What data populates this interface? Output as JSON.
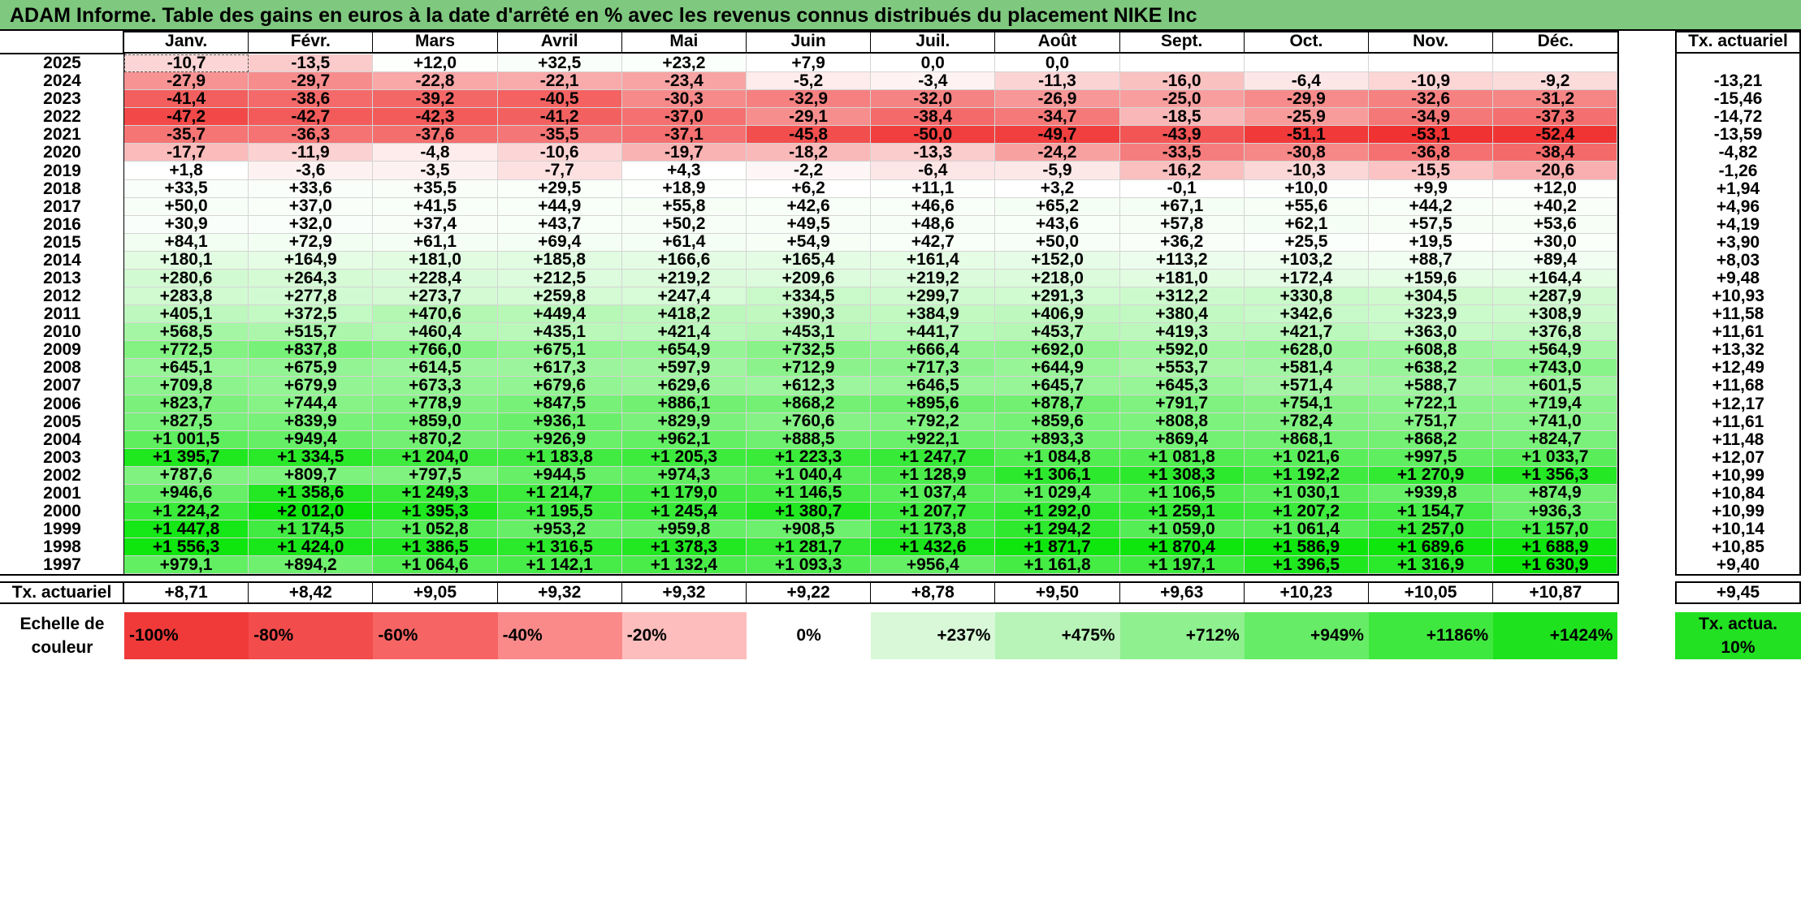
{
  "title": "ADAM Informe. Table des gains en euros à la date d'arrêté en % avec les revenus connus distribués du placement NIKE Inc",
  "months": [
    "Janv.",
    "Févr.",
    "Mars",
    "Avril",
    "Mai",
    "Juin",
    "Juil.",
    "Août",
    "Sept.",
    "Oct.",
    "Nov.",
    "Déc."
  ],
  "rate_header": "Tx. actuariel",
  "rows": [
    {
      "year": "2025",
      "values": [
        "-10,7",
        "-13,5",
        "+12,0",
        "+32,5",
        "+23,2",
        "+7,9",
        "0,0",
        "0,0",
        "",
        "",
        "",
        ""
      ],
      "rate": ""
    },
    {
      "year": "2024",
      "values": [
        "-27,9",
        "-29,7",
        "-22,8",
        "-22,1",
        "-23,4",
        "-5,2",
        "-3,4",
        "-11,3",
        "-16,0",
        "-6,4",
        "-10,9",
        "-9,2"
      ],
      "rate": "-13,21"
    },
    {
      "year": "2023",
      "values": [
        "-41,4",
        "-38,6",
        "-39,2",
        "-40,5",
        "-30,3",
        "-32,9",
        "-32,0",
        "-26,9",
        "-25,0",
        "-29,9",
        "-32,6",
        "-31,2"
      ],
      "rate": "-15,46"
    },
    {
      "year": "2022",
      "values": [
        "-47,2",
        "-42,7",
        "-42,3",
        "-41,2",
        "-37,0",
        "-29,1",
        "-38,4",
        "-34,7",
        "-18,5",
        "-25,9",
        "-34,9",
        "-37,3"
      ],
      "rate": "-14,72"
    },
    {
      "year": "2021",
      "values": [
        "-35,7",
        "-36,3",
        "-37,6",
        "-35,5",
        "-37,1",
        "-45,8",
        "-50,0",
        "-49,7",
        "-43,9",
        "-51,1",
        "-53,1",
        "-52,4"
      ],
      "rate": "-13,59"
    },
    {
      "year": "2020",
      "values": [
        "-17,7",
        "-11,9",
        "-4,8",
        "-10,6",
        "-19,7",
        "-18,2",
        "-13,3",
        "-24,2",
        "-33,5",
        "-30,8",
        "-36,8",
        "-38,4"
      ],
      "rate": "-4,82"
    },
    {
      "year": "2019",
      "values": [
        "+1,8",
        "-3,6",
        "-3,5",
        "-7,7",
        "+4,3",
        "-2,2",
        "-6,4",
        "-5,9",
        "-16,2",
        "-10,3",
        "-15,5",
        "-20,6"
      ],
      "rate": "-1,26"
    },
    {
      "year": "2018",
      "values": [
        "+33,5",
        "+33,6",
        "+35,5",
        "+29,5",
        "+18,9",
        "+6,2",
        "+11,1",
        "+3,2",
        "-0,1",
        "+10,0",
        "+9,9",
        "+12,0"
      ],
      "rate": "+1,94"
    },
    {
      "year": "2017",
      "values": [
        "+50,0",
        "+37,0",
        "+41,5",
        "+44,9",
        "+55,8",
        "+42,6",
        "+46,6",
        "+65,2",
        "+67,1",
        "+55,6",
        "+44,2",
        "+40,2"
      ],
      "rate": "+4,96"
    },
    {
      "year": "2016",
      "values": [
        "+30,9",
        "+32,0",
        "+37,4",
        "+43,7",
        "+50,2",
        "+49,5",
        "+48,6",
        "+43,6",
        "+57,8",
        "+62,1",
        "+57,5",
        "+53,6"
      ],
      "rate": "+4,19"
    },
    {
      "year": "2015",
      "values": [
        "+84,1",
        "+72,9",
        "+61,1",
        "+69,4",
        "+61,4",
        "+54,9",
        "+42,7",
        "+50,0",
        "+36,2",
        "+25,5",
        "+19,5",
        "+30,0"
      ],
      "rate": "+3,90"
    },
    {
      "year": "2014",
      "values": [
        "+180,1",
        "+164,9",
        "+181,0",
        "+185,8",
        "+166,6",
        "+165,4",
        "+161,4",
        "+152,0",
        "+113,2",
        "+103,2",
        "+88,7",
        "+89,4"
      ],
      "rate": "+8,03"
    },
    {
      "year": "2013",
      "values": [
        "+280,6",
        "+264,3",
        "+228,4",
        "+212,5",
        "+219,2",
        "+209,6",
        "+219,2",
        "+218,0",
        "+181,0",
        "+172,4",
        "+159,6",
        "+164,4"
      ],
      "rate": "+9,48"
    },
    {
      "year": "2012",
      "values": [
        "+283,8",
        "+277,8",
        "+273,7",
        "+259,8",
        "+247,4",
        "+334,5",
        "+299,7",
        "+291,3",
        "+312,2",
        "+330,8",
        "+304,5",
        "+287,9"
      ],
      "rate": "+10,93"
    },
    {
      "year": "2011",
      "values": [
        "+405,1",
        "+372,5",
        "+470,6",
        "+449,4",
        "+418,2",
        "+390,3",
        "+384,9",
        "+406,9",
        "+380,4",
        "+342,6",
        "+323,9",
        "+308,9"
      ],
      "rate": "+11,58"
    },
    {
      "year": "2010",
      "values": [
        "+568,5",
        "+515,7",
        "+460,4",
        "+435,1",
        "+421,4",
        "+453,1",
        "+441,7",
        "+453,7",
        "+419,3",
        "+421,7",
        "+363,0",
        "+376,8"
      ],
      "rate": "+11,61"
    },
    {
      "year": "2009",
      "values": [
        "+772,5",
        "+837,8",
        "+766,0",
        "+675,1",
        "+654,9",
        "+732,5",
        "+666,4",
        "+692,0",
        "+592,0",
        "+628,0",
        "+608,8",
        "+564,9"
      ],
      "rate": "+13,32"
    },
    {
      "year": "2008",
      "values": [
        "+645,1",
        "+675,9",
        "+614,5",
        "+617,3",
        "+597,9",
        "+712,9",
        "+717,3",
        "+644,9",
        "+553,7",
        "+581,4",
        "+638,2",
        "+743,0"
      ],
      "rate": "+12,49"
    },
    {
      "year": "2007",
      "values": [
        "+709,8",
        "+679,9",
        "+673,3",
        "+679,6",
        "+629,6",
        "+612,3",
        "+646,5",
        "+645,7",
        "+645,3",
        "+571,4",
        "+588,7",
        "+601,5"
      ],
      "rate": "+11,68"
    },
    {
      "year": "2006",
      "values": [
        "+823,7",
        "+744,4",
        "+778,9",
        "+847,5",
        "+886,1",
        "+868,2",
        "+895,6",
        "+878,7",
        "+791,7",
        "+754,1",
        "+722,1",
        "+719,4"
      ],
      "rate": "+12,17"
    },
    {
      "year": "2005",
      "values": [
        "+827,5",
        "+839,9",
        "+859,0",
        "+936,1",
        "+829,9",
        "+760,6",
        "+792,2",
        "+859,6",
        "+808,8",
        "+782,4",
        "+751,7",
        "+741,0"
      ],
      "rate": "+11,61"
    },
    {
      "year": "2004",
      "values": [
        "+1 001,5",
        "+949,4",
        "+870,2",
        "+926,9",
        "+962,1",
        "+888,5",
        "+922,1",
        "+893,3",
        "+869,4",
        "+868,1",
        "+868,2",
        "+824,7"
      ],
      "rate": "+11,48"
    },
    {
      "year": "2003",
      "values": [
        "+1 395,7",
        "+1 334,5",
        "+1 204,0",
        "+1 183,8",
        "+1 205,3",
        "+1 223,3",
        "+1 247,7",
        "+1 084,8",
        "+1 081,8",
        "+1 021,6",
        "+997,5",
        "+1 033,7"
      ],
      "rate": "+12,07"
    },
    {
      "year": "2002",
      "values": [
        "+787,6",
        "+809,7",
        "+797,5",
        "+944,5",
        "+974,3",
        "+1 040,4",
        "+1 128,9",
        "+1 306,1",
        "+1 308,3",
        "+1 192,2",
        "+1 270,9",
        "+1 356,3"
      ],
      "rate": "+10,99"
    },
    {
      "year": "2001",
      "values": [
        "+946,6",
        "+1 358,6",
        "+1 249,3",
        "+1 214,7",
        "+1 179,0",
        "+1 146,5",
        "+1 037,4",
        "+1 029,4",
        "+1 106,5",
        "+1 030,1",
        "+939,8",
        "+874,9"
      ],
      "rate": "+10,84"
    },
    {
      "year": "2000",
      "values": [
        "+1 224,2",
        "+2 012,0",
        "+1 395,3",
        "+1 195,5",
        "+1 245,4",
        "+1 380,7",
        "+1 207,7",
        "+1 292,0",
        "+1 259,1",
        "+1 207,2",
        "+1 154,7",
        "+936,3"
      ],
      "rate": "+10,99"
    },
    {
      "year": "1999",
      "values": [
        "+1 447,8",
        "+1 174,5",
        "+1 052,8",
        "+953,2",
        "+959,8",
        "+908,5",
        "+1 173,8",
        "+1 294,2",
        "+1 059,0",
        "+1 061,4",
        "+1 257,0",
        "+1 157,0"
      ],
      "rate": "+10,14"
    },
    {
      "year": "1998",
      "values": [
        "+1 556,3",
        "+1 424,0",
        "+1 386,5",
        "+1 316,5",
        "+1 378,3",
        "+1 281,7",
        "+1 432,6",
        "+1 871,7",
        "+1 870,4",
        "+1 586,9",
        "+1 689,6",
        "+1 688,9"
      ],
      "rate": "+10,85"
    },
    {
      "year": "1997",
      "values": [
        "+979,1",
        "+894,2",
        "+1 064,6",
        "+1 142,1",
        "+1 132,4",
        "+1 093,3",
        "+956,4",
        "+1 161,8",
        "+1 197,1",
        "+1 396,5",
        "+1 316,9",
        "+1 630,9"
      ],
      "rate": "+9,40"
    }
  ],
  "footer": {
    "label": "Tx. actuariel",
    "values": [
      "+8,71",
      "+8,42",
      "+9,05",
      "+9,32",
      "+9,32",
      "+9,22",
      "+8,78",
      "+9,50",
      "+9,63",
      "+10,23",
      "+10,05",
      "+10,87"
    ],
    "rate": "+9,45"
  },
  "legend": {
    "label": "Echelle de couleur",
    "items": [
      "-100%",
      "-80%",
      "-60%",
      "-40%",
      "-20%",
      "0%",
      "+237%",
      "+475%",
      "+712%",
      "+949%",
      "+1186%",
      "+1424%"
    ],
    "colors": [
      "#f03a3a",
      "#f34c4c",
      "#f76464",
      "#fa8a8a",
      "#fdbdbd",
      "#ffffff",
      "#d8f8d8",
      "#b8f4b8",
      "#8ff08f",
      "#66ec66",
      "#3fe83f",
      "#1ee21e"
    ],
    "rate_label": "Tx. actua. 10%",
    "rate_color": "#22e022"
  },
  "colors": {
    "title_bg": "#7fc87f",
    "neg_max": "#f03232",
    "pos_max": "#0ee60e"
  }
}
